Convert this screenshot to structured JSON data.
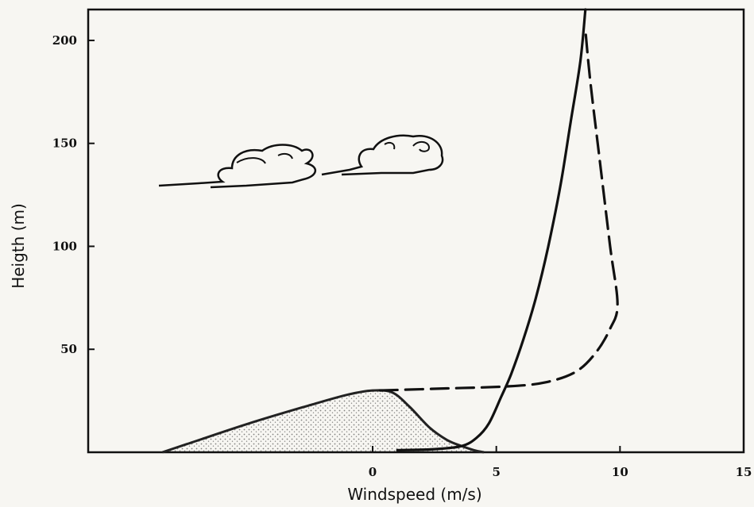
{
  "chart_data": {
    "type": "line",
    "title": "",
    "xlabel": "Windspeed  (m/s)",
    "ylabel": "Heigth (m)",
    "xlim": [
      -11.5,
      15
    ],
    "ylim": [
      0,
      215
    ],
    "x_ticks": [
      0,
      5,
      10,
      15
    ],
    "y_ticks": [
      50,
      100,
      150,
      200
    ],
    "grid": false,
    "legend": "none",
    "series": [
      {
        "style": "solid",
        "color": "#111111",
        "points": [
          [
            1.0,
            1
          ],
          [
            2.5,
            1.5
          ],
          [
            3.6,
            3
          ],
          [
            4.2,
            7
          ],
          [
            4.7,
            14
          ],
          [
            5.2,
            27
          ],
          [
            5.6,
            38
          ],
          [
            6.1,
            55
          ],
          [
            6.6,
            75
          ],
          [
            7.1,
            100
          ],
          [
            7.6,
            130
          ],
          [
            8.0,
            160
          ],
          [
            8.4,
            190
          ],
          [
            8.6,
            215
          ]
        ]
      },
      {
        "style": "dashed",
        "color": "#111111",
        "points": [
          [
            0.3,
            30
          ],
          [
            3.0,
            31
          ],
          [
            5.5,
            32
          ],
          [
            7.0,
            34
          ],
          [
            8.2,
            39
          ],
          [
            9.0,
            48
          ],
          [
            9.6,
            60
          ],
          [
            9.9,
            72
          ],
          [
            9.6,
            100
          ],
          [
            9.2,
            140
          ],
          [
            8.8,
            180
          ],
          [
            8.6,
            205
          ]
        ]
      }
    ],
    "terrain": {
      "color": "#222222",
      "profile": [
        [
          -8.5,
          0
        ],
        [
          -7.5,
          4
        ],
        [
          -5.0,
          14
        ],
        [
          -2.5,
          23
        ],
        [
          -1.0,
          28
        ],
        [
          0,
          30
        ],
        [
          0.8,
          29
        ],
        [
          1.5,
          22
        ],
        [
          2.3,
          12
        ],
        [
          3.0,
          6
        ],
        [
          3.6,
          3
        ],
        [
          4.1,
          1
        ],
        [
          4.5,
          0
        ]
      ]
    }
  }
}
